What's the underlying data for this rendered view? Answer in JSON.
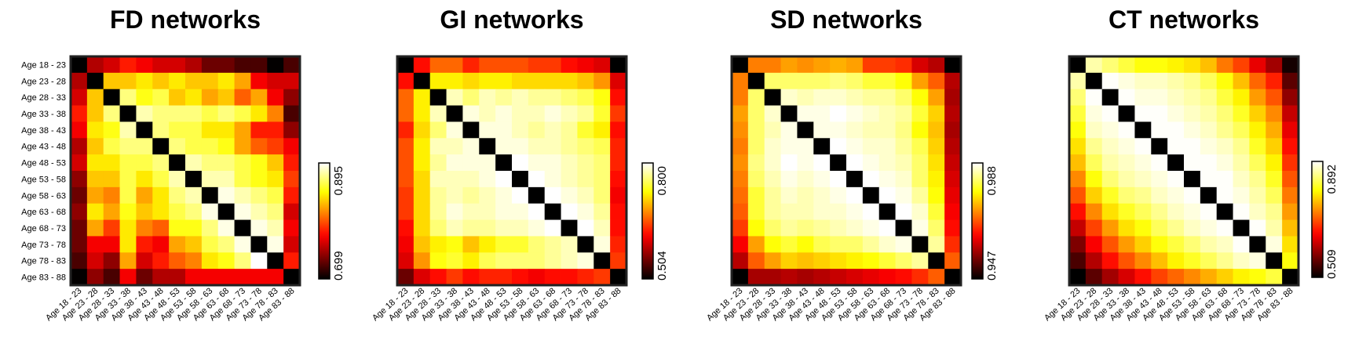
{
  "chart_data": [
    {
      "type": "heatmap",
      "title": "FD networks",
      "categories": [
        "Age 18 - 23",
        "Age 23 - 28",
        "Age 28 - 33",
        "Age 33 - 38",
        "Age 38 - 43",
        "Age 43 - 48",
        "Age 48 - 53",
        "Age 53 - 58",
        "Age 58 - 63",
        "Age 63 - 68",
        "Age 68 - 73",
        "Age 73 - 78",
        "Age 78 - 83",
        "Age 83 - 88"
      ],
      "colorbar": {
        "min": 0.699,
        "max": 0.895,
        "min_label": "0.699",
        "max_label": "0.895"
      },
      "show_row_labels": true,
      "values": [
        [
          null,
          0.75,
          0.76,
          0.78,
          0.77,
          0.76,
          0.76,
          0.75,
          0.73,
          0.73,
          0.72,
          0.72,
          0.7,
          0.72
        ],
        [
          0.75,
          null,
          0.83,
          0.83,
          0.84,
          0.83,
          0.84,
          0.83,
          0.83,
          0.84,
          0.82,
          0.77,
          0.76,
          0.76
        ],
        [
          0.76,
          0.83,
          null,
          0.87,
          0.85,
          0.86,
          0.83,
          0.84,
          0.82,
          0.83,
          0.8,
          0.82,
          0.77,
          0.74
        ],
        [
          0.78,
          0.83,
          0.87,
          null,
          0.88,
          0.87,
          0.87,
          0.87,
          0.86,
          0.87,
          0.86,
          0.84,
          0.81,
          0.72
        ],
        [
          0.77,
          0.84,
          0.85,
          0.88,
          null,
          0.87,
          0.86,
          0.86,
          0.84,
          0.84,
          0.82,
          0.78,
          0.78,
          0.74
        ],
        [
          0.75,
          0.83,
          0.86,
          0.87,
          0.87,
          null,
          0.87,
          0.86,
          0.86,
          0.85,
          0.82,
          0.8,
          0.79,
          0.77
        ],
        [
          0.76,
          0.84,
          0.84,
          0.86,
          0.86,
          0.87,
          null,
          0.88,
          0.87,
          0.87,
          0.86,
          0.85,
          0.83,
          0.78
        ],
        [
          0.74,
          0.83,
          0.83,
          0.86,
          0.84,
          0.86,
          0.88,
          null,
          0.88,
          0.88,
          0.86,
          0.85,
          0.84,
          0.79
        ],
        [
          0.73,
          0.82,
          0.81,
          0.86,
          0.82,
          0.84,
          0.87,
          0.88,
          null,
          0.89,
          0.88,
          0.87,
          0.86,
          0.78
        ],
        [
          0.74,
          0.84,
          0.82,
          0.85,
          0.83,
          0.84,
          0.86,
          0.87,
          0.89,
          null,
          0.89,
          0.88,
          0.87,
          0.76
        ],
        [
          0.73,
          0.82,
          0.79,
          0.84,
          0.81,
          0.8,
          0.85,
          0.85,
          0.87,
          0.89,
          null,
          0.89,
          0.88,
          0.77
        ],
        [
          0.73,
          0.77,
          0.77,
          0.84,
          0.78,
          0.77,
          0.82,
          0.83,
          0.86,
          0.87,
          0.89,
          null,
          0.89,
          0.76
        ],
        [
          0.72,
          0.76,
          0.74,
          0.82,
          0.76,
          0.78,
          0.8,
          0.81,
          0.84,
          0.85,
          0.87,
          0.895,
          null,
          0.78
        ],
        [
          0.7,
          0.74,
          0.72,
          0.77,
          0.73,
          0.75,
          0.75,
          0.77,
          0.77,
          0.77,
          0.77,
          0.77,
          0.77,
          null
        ]
      ]
    },
    {
      "type": "heatmap",
      "title": "GI networks",
      "categories": [
        "Age 18 - 23",
        "Age 23 - 28",
        "Age 28 - 33",
        "Age 33 - 38",
        "Age 38 - 43",
        "Age 43 - 48",
        "Age 48 - 53",
        "Age 53 - 58",
        "Age 58 - 63",
        "Age 63 - 68",
        "Age 68 - 73",
        "Age 73 - 78",
        "Age 78 - 83",
        "Age 83 - 88"
      ],
      "colorbar": {
        "min": 0.504,
        "max": 0.8,
        "min_label": "0.504",
        "max_label": "0.800"
      },
      "show_row_labels": false,
      "values": [
        [
          null,
          0.62,
          0.66,
          0.66,
          0.63,
          0.65,
          0.65,
          0.65,
          0.64,
          0.64,
          0.62,
          0.61,
          0.6,
          null
        ],
        [
          0.62,
          null,
          0.72,
          0.72,
          0.71,
          0.72,
          0.72,
          0.71,
          0.71,
          0.71,
          0.71,
          0.7,
          0.68,
          0.6
        ],
        [
          0.66,
          0.72,
          null,
          0.78,
          0.76,
          0.78,
          0.77,
          0.78,
          0.77,
          0.77,
          0.76,
          0.75,
          0.73,
          0.62
        ],
        [
          0.66,
          0.72,
          0.78,
          null,
          0.79,
          0.78,
          0.79,
          0.78,
          0.78,
          0.79,
          0.78,
          0.77,
          0.74,
          0.64
        ],
        [
          0.63,
          0.71,
          0.76,
          0.79,
          null,
          0.79,
          0.79,
          0.78,
          0.77,
          0.78,
          0.77,
          0.74,
          0.72,
          0.62
        ],
        [
          0.65,
          0.72,
          0.78,
          0.78,
          0.79,
          null,
          0.79,
          0.79,
          0.78,
          0.78,
          0.77,
          0.76,
          0.75,
          0.63
        ],
        [
          0.65,
          0.72,
          0.77,
          0.79,
          0.79,
          0.79,
          null,
          0.8,
          0.79,
          0.79,
          0.78,
          0.77,
          0.76,
          0.63
        ],
        [
          0.65,
          0.71,
          0.78,
          0.78,
          0.78,
          0.79,
          0.8,
          null,
          0.8,
          0.79,
          0.78,
          0.77,
          0.76,
          0.62
        ],
        [
          0.64,
          0.71,
          0.77,
          0.78,
          0.77,
          0.78,
          0.79,
          0.8,
          null,
          0.8,
          0.79,
          0.78,
          0.76,
          0.61
        ],
        [
          0.64,
          0.71,
          0.77,
          0.79,
          0.78,
          0.78,
          0.79,
          0.79,
          0.8,
          null,
          0.8,
          0.79,
          0.77,
          0.62
        ],
        [
          0.62,
          0.71,
          0.76,
          0.78,
          0.77,
          0.77,
          0.78,
          0.78,
          0.79,
          0.8,
          null,
          0.8,
          0.78,
          0.62
        ],
        [
          0.61,
          0.7,
          0.72,
          0.73,
          0.7,
          0.72,
          0.74,
          0.74,
          0.76,
          0.77,
          0.78,
          null,
          0.79,
          0.63
        ],
        [
          0.6,
          0.68,
          0.73,
          0.74,
          0.72,
          0.75,
          0.76,
          0.76,
          0.76,
          0.77,
          0.78,
          0.79,
          null,
          0.64
        ],
        [
          0.55,
          0.6,
          0.62,
          0.64,
          0.62,
          0.63,
          0.63,
          0.62,
          0.61,
          0.62,
          0.62,
          0.63,
          0.64,
          null
        ]
      ]
    },
    {
      "type": "heatmap",
      "title": "SD networks",
      "categories": [
        "Age 18 - 23",
        "Age 23 - 28",
        "Age 28 - 33",
        "Age 33 - 38",
        "Age 38 - 43",
        "Age 43 - 48",
        "Age 48 - 53",
        "Age 53 - 58",
        "Age 58 - 63",
        "Age 63 - 68",
        "Age 68 - 73",
        "Age 73 - 78",
        "Age 78 - 83",
        "Age 83 - 88"
      ],
      "colorbar": {
        "min": 0.947,
        "max": 0.988,
        "min_label": "0.947",
        "max_label": "0.988"
      },
      "show_row_labels": false,
      "values": [
        [
          null,
          0.97,
          0.97,
          0.972,
          0.971,
          0.972,
          0.973,
          0.972,
          0.966,
          0.966,
          0.965,
          0.96,
          0.958,
          null
        ],
        [
          0.97,
          null,
          0.982,
          0.982,
          0.982,
          0.982,
          0.983,
          0.982,
          0.98,
          0.98,
          0.978,
          0.972,
          0.968,
          0.958
        ],
        [
          0.97,
          0.982,
          null,
          0.986,
          0.985,
          0.986,
          0.986,
          0.985,
          0.984,
          0.984,
          0.982,
          0.978,
          0.972,
          0.957
        ],
        [
          0.972,
          0.982,
          0.986,
          null,
          0.987,
          0.987,
          0.988,
          0.987,
          0.986,
          0.985,
          0.984,
          0.98,
          0.975,
          0.958
        ],
        [
          0.971,
          0.982,
          0.985,
          0.987,
          null,
          0.987,
          0.987,
          0.986,
          0.985,
          0.985,
          0.983,
          0.978,
          0.974,
          0.957
        ],
        [
          0.97,
          0.982,
          0.986,
          0.987,
          0.987,
          null,
          0.988,
          0.987,
          0.986,
          0.986,
          0.984,
          0.981,
          0.975,
          0.958
        ],
        [
          0.971,
          0.983,
          0.986,
          0.988,
          0.987,
          0.988,
          null,
          0.988,
          0.987,
          0.986,
          0.985,
          0.982,
          0.976,
          0.959
        ],
        [
          0.97,
          0.982,
          0.985,
          0.987,
          0.986,
          0.987,
          0.988,
          null,
          0.988,
          0.987,
          0.986,
          0.982,
          0.977,
          0.96
        ],
        [
          0.969,
          0.98,
          0.984,
          0.986,
          0.985,
          0.986,
          0.987,
          0.988,
          null,
          0.988,
          0.987,
          0.984,
          0.978,
          0.961
        ],
        [
          0.968,
          0.98,
          0.984,
          0.985,
          0.985,
          0.986,
          0.986,
          0.987,
          0.988,
          null,
          0.988,
          0.986,
          0.98,
          0.962
        ],
        [
          0.966,
          0.978,
          0.982,
          0.984,
          0.983,
          0.984,
          0.985,
          0.986,
          0.987,
          0.988,
          null,
          0.987,
          0.982,
          0.963
        ],
        [
          0.962,
          0.972,
          0.978,
          0.98,
          0.978,
          0.981,
          0.982,
          0.982,
          0.984,
          0.986,
          0.987,
          null,
          0.984,
          0.965
        ],
        [
          0.958,
          0.968,
          0.972,
          0.975,
          0.974,
          0.975,
          0.976,
          0.977,
          0.978,
          0.98,
          0.982,
          0.984,
          null,
          0.968
        ],
        [
          0.947,
          0.957,
          0.957,
          0.958,
          0.957,
          0.958,
          0.959,
          0.96,
          0.961,
          0.962,
          0.963,
          0.965,
          0.968,
          null
        ]
      ]
    },
    {
      "type": "heatmap",
      "title": "CT networks",
      "categories": [
        "Age 18 - 23",
        "Age 23 - 28",
        "Age 28 - 33",
        "Age 33 - 38",
        "Age 38 - 43",
        "Age 43 - 48",
        "Age 48 - 53",
        "Age 53 - 58",
        "Age 58 - 63",
        "Age 63 - 68",
        "Age 68 - 73",
        "Age 73 - 78",
        "Age 78 - 83",
        "Age 83 - 88"
      ],
      "colorbar": {
        "min": 0.509,
        "max": 0.892,
        "min_label": "0.509",
        "max_label": "0.892"
      },
      "show_row_labels": false,
      "values": [
        [
          null,
          0.86,
          0.84,
          0.82,
          0.8,
          0.8,
          0.79,
          0.78,
          0.76,
          0.72,
          0.69,
          0.64,
          0.6,
          0.52
        ],
        [
          0.86,
          null,
          0.89,
          0.88,
          0.87,
          0.87,
          0.86,
          0.85,
          0.83,
          0.8,
          0.76,
          0.71,
          0.67,
          0.56
        ],
        [
          0.84,
          0.89,
          null,
          0.89,
          0.88,
          0.88,
          0.87,
          0.86,
          0.85,
          0.82,
          0.79,
          0.74,
          0.7,
          0.59
        ],
        [
          0.82,
          0.88,
          0.89,
          null,
          0.89,
          0.89,
          0.88,
          0.87,
          0.86,
          0.84,
          0.81,
          0.77,
          0.73,
          0.62
        ],
        [
          0.8,
          0.87,
          0.88,
          0.89,
          null,
          0.89,
          0.89,
          0.88,
          0.87,
          0.85,
          0.83,
          0.79,
          0.75,
          0.64
        ],
        [
          0.78,
          0.85,
          0.87,
          0.88,
          0.89,
          null,
          0.89,
          0.89,
          0.88,
          0.87,
          0.85,
          0.81,
          0.77,
          0.66
        ],
        [
          0.76,
          0.83,
          0.86,
          0.87,
          0.88,
          0.89,
          null,
          0.89,
          0.89,
          0.88,
          0.86,
          0.83,
          0.79,
          0.68
        ],
        [
          0.73,
          0.8,
          0.84,
          0.86,
          0.87,
          0.88,
          0.89,
          null,
          0.89,
          0.89,
          0.87,
          0.85,
          0.81,
          0.7
        ],
        [
          0.7,
          0.77,
          0.81,
          0.84,
          0.85,
          0.87,
          0.88,
          0.89,
          null,
          0.89,
          0.88,
          0.86,
          0.83,
          0.72
        ],
        [
          0.66,
          0.73,
          0.78,
          0.81,
          0.83,
          0.85,
          0.87,
          0.88,
          0.89,
          null,
          0.89,
          0.87,
          0.85,
          0.74
        ],
        [
          0.62,
          0.69,
          0.74,
          0.78,
          0.8,
          0.83,
          0.85,
          0.87,
          0.88,
          0.89,
          null,
          0.89,
          0.86,
          0.76
        ],
        [
          0.58,
          0.65,
          0.7,
          0.74,
          0.77,
          0.8,
          0.82,
          0.84,
          0.86,
          0.87,
          0.89,
          null,
          0.88,
          0.78
        ],
        [
          0.55,
          0.61,
          0.66,
          0.7,
          0.73,
          0.76,
          0.79,
          0.81,
          0.83,
          0.85,
          0.87,
          0.88,
          null,
          0.8
        ],
        [
          0.509,
          0.56,
          0.6,
          0.63,
          0.66,
          0.69,
          0.71,
          0.73,
          0.75,
          0.77,
          0.79,
          0.8,
          0.82,
          null
        ]
      ]
    }
  ]
}
